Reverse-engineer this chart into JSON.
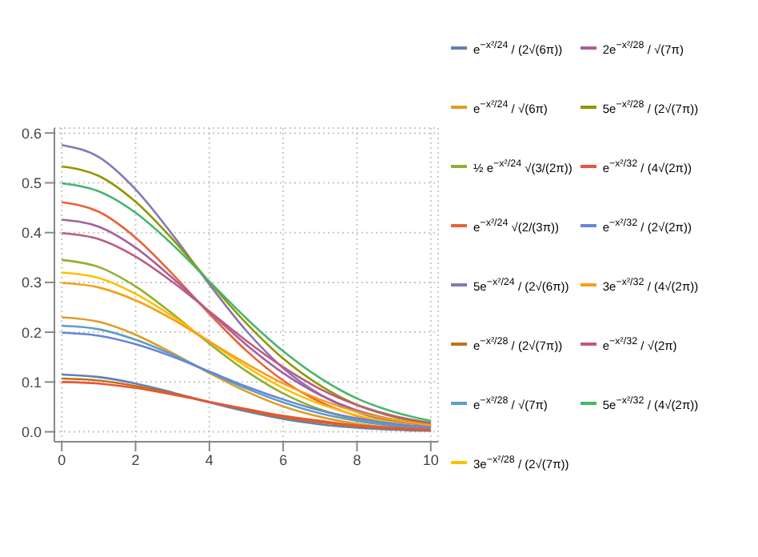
{
  "chart_data": {
    "type": "line",
    "x": [
      0,
      1,
      2,
      3,
      4,
      5,
      6,
      7,
      8,
      9,
      10
    ],
    "xlim": [
      -0.2,
      10.2
    ],
    "xticks": [
      0,
      2,
      4,
      6,
      8,
      10
    ],
    "ylim": [
      -0.02,
      0.61
    ],
    "yticks": [
      {
        "value": 0,
        "label": "0.0"
      },
      {
        "value": 0.1,
        "label": "0.1"
      },
      {
        "value": 0.2,
        "label": "0.2"
      },
      {
        "value": 0.3,
        "label": "0.3"
      },
      {
        "value": 0.4,
        "label": "0.4"
      },
      {
        "value": 0.5,
        "label": "0.5"
      },
      {
        "value": 0.6,
        "label": "0.6"
      }
    ],
    "grid": true,
    "legend": "right",
    "marker": "none",
    "line_style": "solid",
    "series": [
      {
        "name": "e$^{−x²/24}$ / (2√(6π))",
        "color": "#5e81b5",
        "values": [
          0.115,
          0.11,
          0.097,
          0.079,
          0.059,
          0.041,
          0.026,
          0.015,
          0.008,
          0.004,
          0.002
        ]
      },
      {
        "name": "e$^{−x²/24}$ / √(6π)",
        "color": "#e19c24",
        "values": [
          0.23,
          0.221,
          0.195,
          0.158,
          0.118,
          0.081,
          0.051,
          0.03,
          0.016,
          0.008,
          0.004
        ]
      },
      {
        "name": "½ e$^{−x²/24}$ √(3/(2π))",
        "color": "#8fb032",
        "values": [
          0.345,
          0.331,
          0.292,
          0.237,
          0.177,
          0.122,
          0.077,
          0.045,
          0.024,
          0.012,
          0.005
        ]
      },
      {
        "name": "e$^{−x²/24}$ √(2/(3π))",
        "color": "#eb6235",
        "values": [
          0.461,
          0.442,
          0.39,
          0.317,
          0.237,
          0.163,
          0.103,
          0.06,
          0.032,
          0.016,
          0.007
        ]
      },
      {
        "name": "5e$^{−x²/24}$ / (2√(6π))",
        "color": "#8778b3",
        "values": [
          0.576,
          0.552,
          0.487,
          0.396,
          0.296,
          0.203,
          0.128,
          0.075,
          0.04,
          0.02,
          0.009
        ]
      },
      {
        "name": "e$^{−x²/28}$ / (2√(7π))",
        "color": "#c56e1a",
        "values": [
          0.107,
          0.103,
          0.092,
          0.077,
          0.06,
          0.044,
          0.029,
          0.019,
          0.011,
          0.006,
          0.003
        ]
      },
      {
        "name": "e$^{−x²/28}$ / √(7π)",
        "color": "#5d9ec7",
        "values": [
          0.213,
          0.206,
          0.185,
          0.155,
          0.12,
          0.087,
          0.059,
          0.037,
          0.022,
          0.012,
          0.006
        ]
      },
      {
        "name": "3e$^{−x²/28}$ / (2√(7π))",
        "color": "#ffbf00",
        "values": [
          0.32,
          0.309,
          0.277,
          0.232,
          0.181,
          0.131,
          0.088,
          0.056,
          0.033,
          0.018,
          0.009
        ]
      },
      {
        "name": "2e$^{−x²/28}$ / √(7π)",
        "color": "#a5609d",
        "values": [
          0.426,
          0.412,
          0.37,
          0.309,
          0.241,
          0.175,
          0.118,
          0.074,
          0.043,
          0.024,
          0.012
        ]
      },
      {
        "name": "5e$^{−x²/28}$ / (2√(7π))",
        "color": "#929600",
        "values": [
          0.533,
          0.514,
          0.462,
          0.387,
          0.301,
          0.218,
          0.147,
          0.093,
          0.054,
          0.03,
          0.015
        ]
      },
      {
        "name": "e$^{−x²/32}$ / (4√(2π))",
        "color": "#e95536",
        "values": [
          0.1,
          0.097,
          0.088,
          0.075,
          0.06,
          0.046,
          0.032,
          0.022,
          0.013,
          0.008,
          0.004
        ]
      },
      {
        "name": "e$^{−x²/32}$ / (2√(2π))",
        "color": "#6685d9",
        "values": [
          0.199,
          0.193,
          0.176,
          0.151,
          0.121,
          0.091,
          0.065,
          0.043,
          0.027,
          0.016,
          0.009
        ]
      },
      {
        "name": "3e$^{−x²/32}$ / (4√(2π))",
        "color": "#f89f13",
        "values": [
          0.299,
          0.29,
          0.264,
          0.226,
          0.181,
          0.137,
          0.097,
          0.065,
          0.04,
          0.024,
          0.013
        ]
      },
      {
        "name": "e$^{−x²/32}$ / √(2π)",
        "color": "#bc5b80",
        "values": [
          0.399,
          0.387,
          0.352,
          0.301,
          0.242,
          0.183,
          0.13,
          0.086,
          0.054,
          0.032,
          0.018
        ]
      },
      {
        "name": "5e$^{−x²/32}$ / (4√(2π))",
        "color": "#47b66d",
        "values": [
          0.499,
          0.483,
          0.44,
          0.376,
          0.302,
          0.228,
          0.162,
          0.108,
          0.067,
          0.04,
          0.022
        ]
      }
    ]
  }
}
